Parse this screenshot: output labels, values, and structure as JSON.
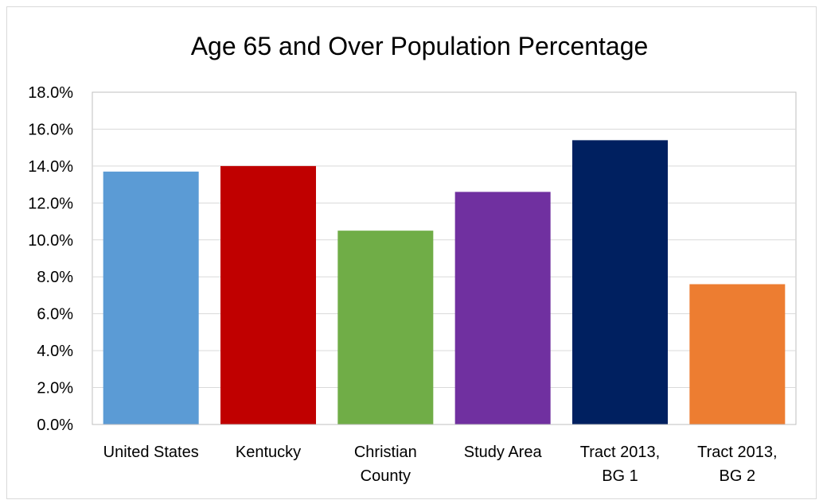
{
  "chart_data": {
    "type": "bar",
    "title": "Age 65 and Over Population Percentage",
    "xlabel": "",
    "ylabel": "",
    "categories": [
      [
        "United States"
      ],
      [
        "Kentucky"
      ],
      [
        "Christian",
        "County"
      ],
      [
        "Study Area"
      ],
      [
        "Tract 2013,",
        "BG 1"
      ],
      [
        "Tract 2013,",
        "BG 2"
      ]
    ],
    "values": [
      13.7,
      14.0,
      10.5,
      12.6,
      15.4,
      7.6
    ],
    "colors": [
      "#5b9bd5",
      "#c00000",
      "#70ad47",
      "#7030a0",
      "#002060",
      "#ed7d31"
    ],
    "ylim": [
      0,
      18
    ],
    "yticks": [
      "0.0%",
      "2.0%",
      "4.0%",
      "6.0%",
      "8.0%",
      "10.0%",
      "12.0%",
      "14.0%",
      "16.0%",
      "18.0%"
    ],
    "grid": true,
    "legend": "none"
  }
}
